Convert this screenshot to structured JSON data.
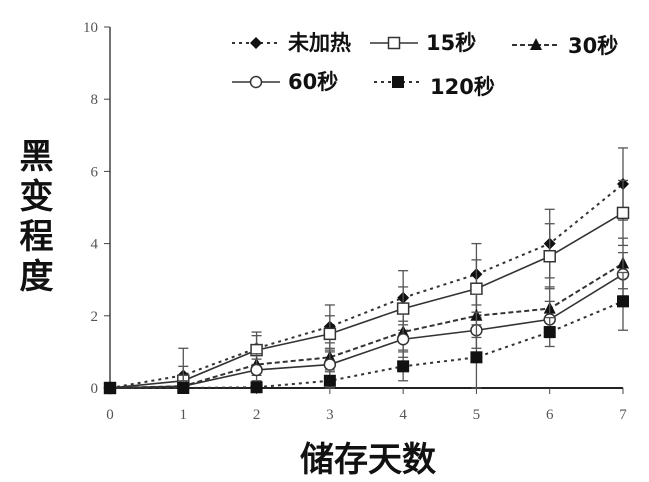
{
  "chart_data": {
    "type": "line",
    "title": "",
    "xlabel": "储存天数",
    "ylabel": "黑变程度",
    "x": [
      0,
      1,
      2,
      3,
      4,
      5,
      6,
      7
    ],
    "xlim": [
      0,
      7
    ],
    "ylim": [
      0,
      10
    ],
    "xticks": [
      "0",
      "1",
      "2",
      "3",
      "4",
      "5",
      "6",
      "7"
    ],
    "yticks": [
      "0",
      "2",
      "4",
      "6",
      "8",
      "10"
    ],
    "grid": false,
    "legend_position": "top",
    "series": [
      {
        "name": "未加热",
        "marker": "diamond-filled",
        "line": "dotted",
        "values": [
          0,
          0.35,
          1.1,
          1.7,
          2.5,
          3.15,
          4.0,
          5.65
        ],
        "errors": [
          0,
          0.75,
          0.45,
          0.6,
          0.75,
          0.85,
          0.95,
          1.0
        ]
      },
      {
        "name": "15秒",
        "marker": "square-open",
        "line": "solid",
        "values": [
          0,
          0.2,
          1.05,
          1.5,
          2.2,
          2.75,
          3.65,
          4.85
        ],
        "errors": [
          0,
          0.4,
          0.4,
          0.5,
          0.6,
          0.8,
          0.9,
          0.9
        ]
      },
      {
        "name": "30秒",
        "marker": "triangle-filled",
        "line": "dashed",
        "values": [
          0,
          0.05,
          0.65,
          0.85,
          1.55,
          2.0,
          2.2,
          3.45
        ],
        "errors": [
          0,
          0.3,
          0.3,
          0.4,
          0.5,
          0.6,
          0.6,
          0.7
        ]
      },
      {
        "name": "60秒",
        "marker": "circle-open",
        "line": "solid",
        "values": [
          0,
          0.05,
          0.5,
          0.65,
          1.35,
          1.6,
          1.9,
          3.15
        ],
        "errors": [
          0,
          0.3,
          0.3,
          0.4,
          0.5,
          0.5,
          0.5,
          0.6
        ]
      },
      {
        "name": "120秒",
        "marker": "square-filled",
        "line": "dotted",
        "values": [
          0,
          0,
          0.02,
          0.2,
          0.6,
          0.85,
          1.55,
          2.4
        ],
        "errors": [
          0,
          0.2,
          0.1,
          0.3,
          0.4,
          0.9,
          0.4,
          0.8
        ]
      }
    ]
  }
}
